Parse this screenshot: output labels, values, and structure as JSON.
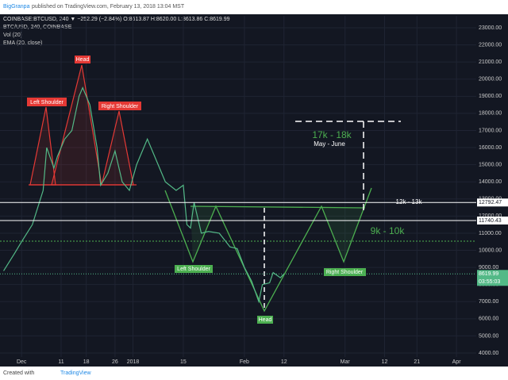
{
  "header": {
    "author": "BigGranpa",
    "published": "published on TradingView.com, February 13, 2018 13:04 MST",
    "quote": "COINBASE:BTCUSD, 240 ▼ −252.29 (−2.84%) O:8613.87 H:8620.00 L:8613.86 C:8619.99",
    "legend": [
      "Vol (20)",
      "EMA (20, close)"
    ]
  },
  "footer": {
    "text": "Created with",
    "brand": "TradingView"
  },
  "chart_data": {
    "type": "line",
    "title": "BTC/USD, 240, COINBASE",
    "color": "#53b987",
    "x": [
      -5,
      -2,
      0,
      3,
      6,
      7,
      9,
      10,
      12,
      14,
      16,
      17,
      19,
      21,
      22,
      24,
      26,
      28,
      30,
      32,
      35,
      38,
      40,
      43,
      45,
      46,
      47,
      48,
      50,
      52,
      55,
      58,
      60,
      62,
      64,
      66,
      67,
      69,
      70,
      72,
      73
    ],
    "values": [
      8800,
      9800,
      10500,
      11500,
      13500,
      16000,
      14800,
      15500,
      16500,
      17000,
      19000,
      19500,
      18500,
      16000,
      13800,
      14500,
      15800,
      14000,
      13500,
      15000,
      16500,
      15000,
      14000,
      13500,
      13800,
      11500,
      11300,
      12800,
      11000,
      11100,
      11000,
      10200,
      10100,
      9000,
      8200,
      7000,
      8000,
      8100,
      8700,
      8400,
      8620
    ],
    "xlim": [
      -6,
      126.5
    ],
    "ylim": [
      3305,
      23695
    ],
    "xticks": [
      {
        "value": 0,
        "label": "Dec"
      },
      11,
      18,
      26,
      {
        "value": 31,
        "label": "2018"
      },
      {
        "value": 45,
        "label": "15"
      },
      {
        "value": 62,
        "label": "Feb"
      },
      {
        "value": 73,
        "label": "12"
      },
      {
        "value": 90,
        "label": "Mar"
      },
      {
        "value": 101,
        "label": "12"
      },
      {
        "value": 110,
        "label": "21"
      },
      {
        "value": 121,
        "label": "Apr"
      }
    ],
    "yticks": [
      {
        "value": 4000,
        "label": "4000.00"
      },
      {
        "value": 5000,
        "label": "5000.00"
      },
      {
        "value": 6000,
        "label": "6000.00"
      },
      {
        "value": 7000,
        "label": "7000.00"
      },
      {
        "value": 8000,
        "label": "8000.00"
      },
      {
        "value": 9000,
        "label": "9000.00"
      },
      {
        "value": 10000,
        "label": "10000.00"
      },
      {
        "value": 11000,
        "label": "11000.00"
      },
      {
        "value": 12000,
        "label": "12000.00"
      },
      {
        "value": 13000,
        "label": "13000.00"
      },
      {
        "value": 14000,
        "label": "14000.00"
      },
      {
        "value": 15000,
        "label": "15000.00"
      },
      {
        "value": 16000,
        "label": "16000.00"
      },
      {
        "value": 17000,
        "label": "17000.00"
      },
      {
        "value": 18000,
        "label": "18000.00"
      },
      {
        "value": 19000,
        "label": "19000.00"
      },
      {
        "value": 20000,
        "label": "20000.00"
      },
      {
        "value": 21000,
        "label": "21000.00"
      },
      {
        "value": 22000,
        "label": "22000.00"
      },
      {
        "value": 23000,
        "label": "23000.00"
      }
    ],
    "price_lines": [
      12792.47,
      11740.43
    ],
    "last_price": 8619.99,
    "countdown": "03:55:03",
    "annotations": {
      "red": [
        "Left Shoulder",
        "Head",
        "Right Shoulder"
      ],
      "green": [
        "Left Shoulder",
        "Head",
        "Right Shoulder"
      ],
      "target_high": "17k - 18k",
      "target_time": "May - June",
      "zone_mid": "12k - 13k",
      "zone_low": "9k - 10k"
    }
  }
}
